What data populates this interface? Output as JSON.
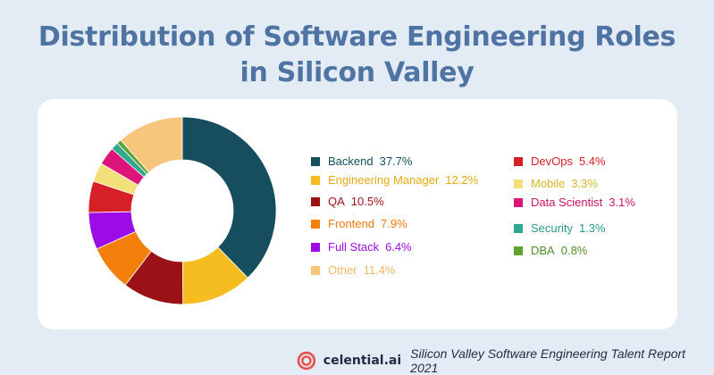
{
  "title_lines": [
    "Distribution of Software Engineering Roles",
    "in Silicon Valley"
  ],
  "chart_data": {
    "type": "pie",
    "donut": true,
    "title": "Distribution of Software Engineering Roles in Silicon Valley",
    "slices": [
      {
        "label": "Backend",
        "value": 37.7,
        "display": "37.7%",
        "color": "#164e5e",
        "text_color": "#164e5e"
      },
      {
        "label": "Engineering Manager",
        "value": 12.2,
        "display": "12.2%",
        "color": "#f5bd20",
        "text_color": "#e8a814"
      },
      {
        "label": "QA",
        "value": 10.5,
        "display": "10.5%",
        "color": "#9a1216",
        "text_color": "#9a1216"
      },
      {
        "label": "Frontend",
        "value": 7.9,
        "display": "7.9%",
        "color": "#f57f0b",
        "text_color": "#ef7a0c"
      },
      {
        "label": "Full Stack",
        "value": 6.4,
        "display": "6.4%",
        "color": "#9b0ce6",
        "text_color": "#9b0ce6"
      },
      {
        "label": "DevOps",
        "value": 5.4,
        "display": "5.4%",
        "color": "#d71f27",
        "text_color": "#d71f27"
      },
      {
        "label": "Mobile",
        "value": 3.3,
        "display": "3.3%",
        "color": "#f3e07a",
        "text_color": "#d9b824"
      },
      {
        "label": "Data Scientist",
        "value": 3.1,
        "display": "3.1%",
        "color": "#dd1479",
        "text_color": "#c81466"
      },
      {
        "label": "Security",
        "value": 1.3,
        "display": "1.3%",
        "color": "#2fa98d",
        "text_color": "#2a9a80"
      },
      {
        "label": "DBA",
        "value": 0.8,
        "display": "0.8%",
        "color": "#5ea332",
        "text_color": "#4d8e27"
      },
      {
        "label": "Other",
        "value": 11.4,
        "display": "11.4%",
        "color": "#f7c57c",
        "text_color": "#f0b866"
      }
    ],
    "legend_placement": "right"
  },
  "footer": {
    "brand": "celential.ai",
    "report": "Silicon Valley Software Engineering Talent Report 2021",
    "logo_color": "#e8504a"
  }
}
